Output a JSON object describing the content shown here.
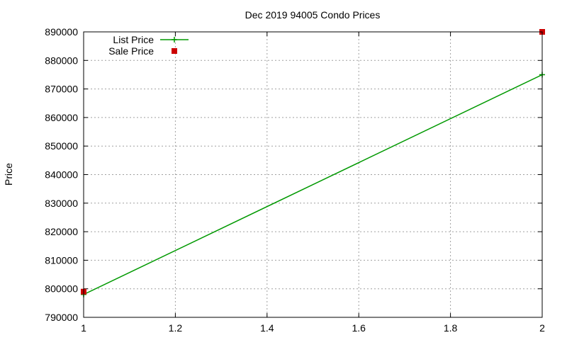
{
  "chart_data": {
    "type": "line",
    "title": "Dec 2019 94005 Condo Prices",
    "ylabel": "Price",
    "xlabel": "",
    "xlim": [
      1,
      2
    ],
    "ylim": [
      790000,
      890000
    ],
    "x_ticks": [
      1,
      1.2,
      1.4,
      1.6,
      1.8,
      2
    ],
    "x_tick_labels": [
      "1",
      "1.2",
      "1.4",
      "1.6",
      "1.8",
      "2"
    ],
    "y_ticks": [
      790000,
      800000,
      810000,
      820000,
      830000,
      840000,
      850000,
      860000,
      870000,
      880000,
      890000
    ],
    "y_tick_labels": [
      "790000",
      "800000",
      "810000",
      "820000",
      "830000",
      "840000",
      "850000",
      "860000",
      "870000",
      "880000",
      "890000"
    ],
    "grid": true,
    "legend_position": "top-left",
    "series": [
      {
        "name": "List Price",
        "style": "line-points",
        "color": "#009900",
        "x": [
          1,
          2
        ],
        "values": [
          798000,
          875000
        ]
      },
      {
        "name": "Sale Price",
        "style": "points",
        "color": "#cc0000",
        "x": [
          1,
          2
        ],
        "values": [
          799000,
          890000
        ]
      }
    ]
  }
}
